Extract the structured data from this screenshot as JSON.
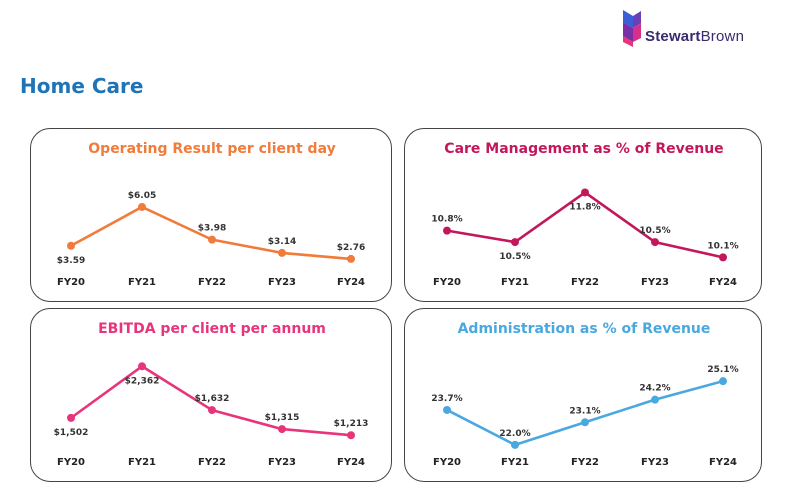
{
  "header": {
    "section_title": "Home Care",
    "logo": {
      "text_bold": "Stewart",
      "text_light": "Brown",
      "icon": "stewartbrown-logo-icon"
    }
  },
  "chart_data": [
    {
      "type": "line",
      "title": "Operating Result per client day",
      "color": "#f07b3a",
      "categories": [
        "FY20",
        "FY21",
        "FY22",
        "FY23",
        "FY24"
      ],
      "values": [
        3.59,
        6.05,
        3.98,
        3.14,
        2.76
      ],
      "labels": [
        "$3.59",
        "$6.05",
        "$3.98",
        "$3.14",
        "$2.76"
      ],
      "ylim": [
        2.5,
        6.3
      ],
      "grid": false
    },
    {
      "type": "line",
      "title": "Care Management as % of Revenue",
      "color": "#c2185b",
      "categories": [
        "FY20",
        "FY21",
        "FY22",
        "FY23",
        "FY24"
      ],
      "values": [
        10.8,
        10.5,
        11.8,
        10.5,
        10.1
      ],
      "labels": [
        "10.8%",
        "10.5%",
        "11.8%",
        "10.5%",
        "10.1%"
      ],
      "ylim": [
        9.9,
        12.1
      ],
      "grid": false
    },
    {
      "type": "line",
      "title": "EBITDA per client per annum",
      "color": "#e8347a",
      "categories": [
        "FY20",
        "FY21",
        "FY22",
        "FY23",
        "FY24"
      ],
      "values": [
        1502,
        2362,
        1632,
        1315,
        1213
      ],
      "labels": [
        "$1,502",
        "$2,362",
        "$1,632",
        "$1,315",
        "$1,213"
      ],
      "ylim": [
        1150,
        2450
      ],
      "grid": false
    },
    {
      "type": "line",
      "title": "Administration as % of Revenue",
      "color": "#4aa8e0",
      "categories": [
        "FY20",
        "FY21",
        "FY22",
        "FY23",
        "FY24"
      ],
      "values": [
        23.7,
        22.0,
        23.1,
        24.2,
        25.1
      ],
      "labels": [
        "23.7%",
        "22.0%",
        "23.1%",
        "24.2%",
        "25.1%"
      ],
      "ylim": [
        21.8,
        25.4
      ],
      "grid": false
    }
  ]
}
